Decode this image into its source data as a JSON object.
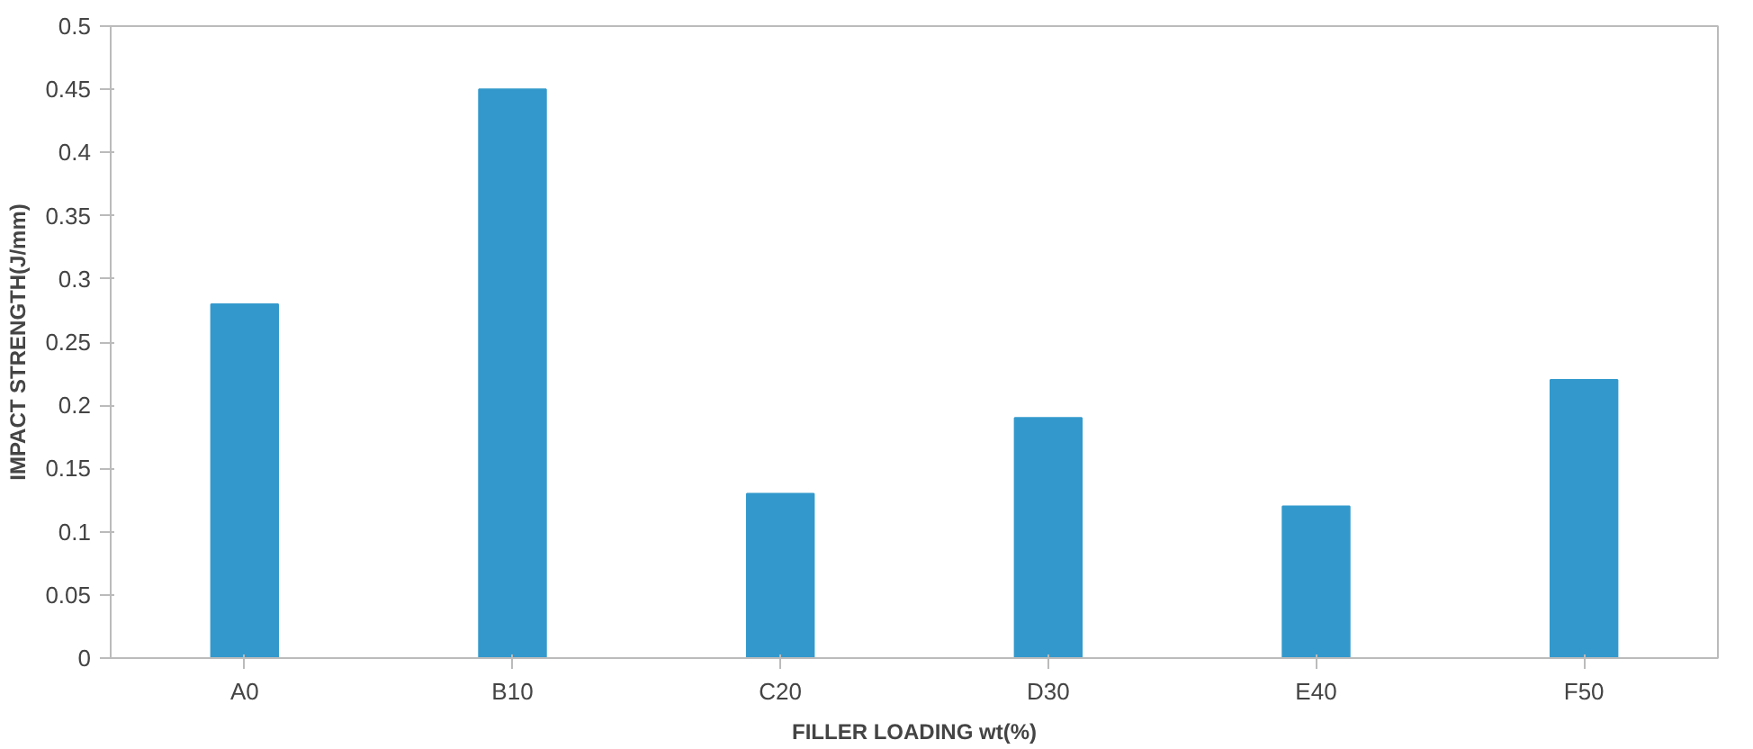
{
  "chart_data": {
    "type": "bar",
    "xlabel": "FILLER LOADING wt(%)",
    "ylabel": "IMPACT STRENGTH(J/mm)",
    "categories": [
      "A0",
      "B10",
      "C20",
      "D30",
      "E40",
      "F50"
    ],
    "values": [
      0.28,
      0.45,
      0.13,
      0.19,
      0.12,
      0.22
    ],
    "color": "#3399cc",
    "ylim": [
      0,
      0.5
    ],
    "yticks": [
      0,
      0.05,
      0.1,
      0.15,
      0.2,
      0.25,
      0.3,
      0.35,
      0.4,
      0.45,
      0.5
    ],
    "grid": false
  }
}
